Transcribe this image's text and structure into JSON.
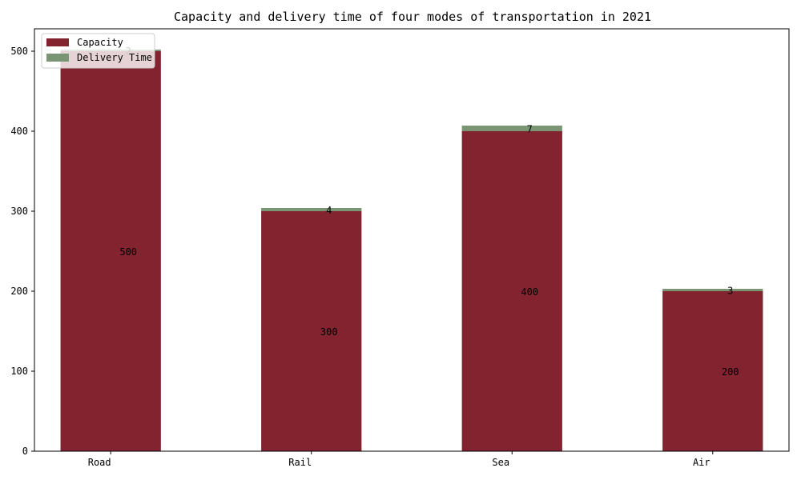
{
  "chart_data": {
    "type": "bar",
    "stacked": true,
    "title": "Capacity and delivery time of four modes of transportation in 2021",
    "xlabel": "",
    "ylabel": "",
    "categories": [
      "Road",
      "Rail",
      "Sea",
      "Air"
    ],
    "series": [
      {
        "name": "Capacity",
        "values": [
          500,
          300,
          400,
          200
        ],
        "color": "#82232f"
      },
      {
        "name": "Delivery Time",
        "values": [
          2,
          4,
          7,
          3
        ],
        "color": "#7a9574"
      }
    ],
    "ylim": [
      0,
      528
    ],
    "yticks": [
      0,
      100,
      200,
      300,
      400,
      500
    ],
    "grid": false,
    "legend_position": "top-left"
  }
}
